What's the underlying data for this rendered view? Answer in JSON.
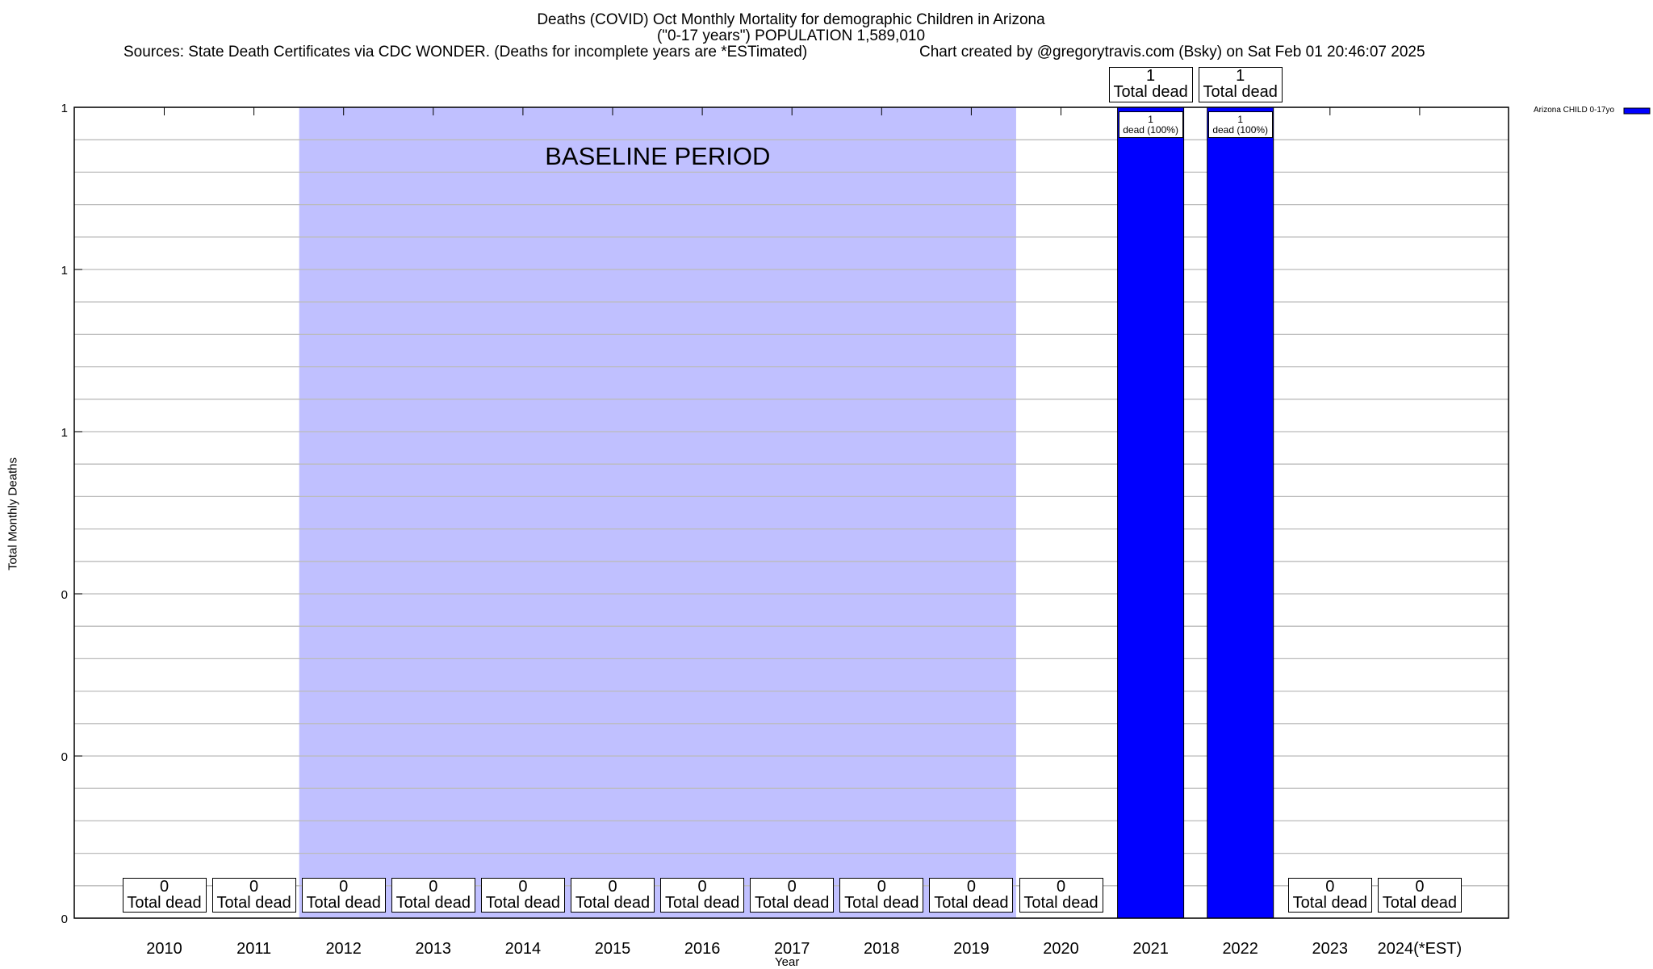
{
  "chart_data": {
    "type": "bar",
    "title": "Deaths (COVID) Oct Monthly Mortality for demographic Children in Arizona",
    "subtitle": "(\"0-17 years\") POPULATION 1,589,010",
    "source": "Sources: State Death Certificates via CDC WONDER. (Deaths for incomplete years are *ESTimated)",
    "credit": "Chart created by @gregorytravis.com (Bsky) on Sat Feb 01 20:46:07 2025",
    "xlabel": "Year",
    "ylabel": "Total Monthly Deaths",
    "ylim": [
      0,
      1
    ],
    "y_ticks": [
      0,
      0.2,
      0.4,
      0.6,
      0.8,
      1
    ],
    "y_tick_labels": [
      "0",
      "0",
      "0",
      "1",
      "1",
      "1"
    ],
    "grid": true,
    "legend_position": "top-right, outside",
    "categories": [
      "2010",
      "2011",
      "2012",
      "2013",
      "2014",
      "2015",
      "2016",
      "2017",
      "2018",
      "2019",
      "2020",
      "2021",
      "2022",
      "2023",
      "2024(*EST)"
    ],
    "series": [
      {
        "name": "Arizona CHILD 0-17yo",
        "color": "#0000ff",
        "values": [
          0,
          0,
          0,
          0,
          0,
          0,
          0,
          0,
          0,
          0,
          0,
          1,
          1,
          0,
          0
        ]
      }
    ],
    "total_labels": [
      "0",
      "0",
      "0",
      "0",
      "0",
      "0",
      "0",
      "0",
      "0",
      "0",
      "0",
      "1",
      "1",
      "0",
      "0"
    ],
    "total_label_suffix": "Total dead",
    "inner_labels": {
      "2021": [
        "1",
        "dead (100%)"
      ],
      "2022": [
        "1",
        "dead (100%)"
      ]
    },
    "baseline": {
      "label": "BASELINE PERIOD",
      "from": "2012",
      "to": "2019",
      "color": "#c0c0ff"
    }
  }
}
